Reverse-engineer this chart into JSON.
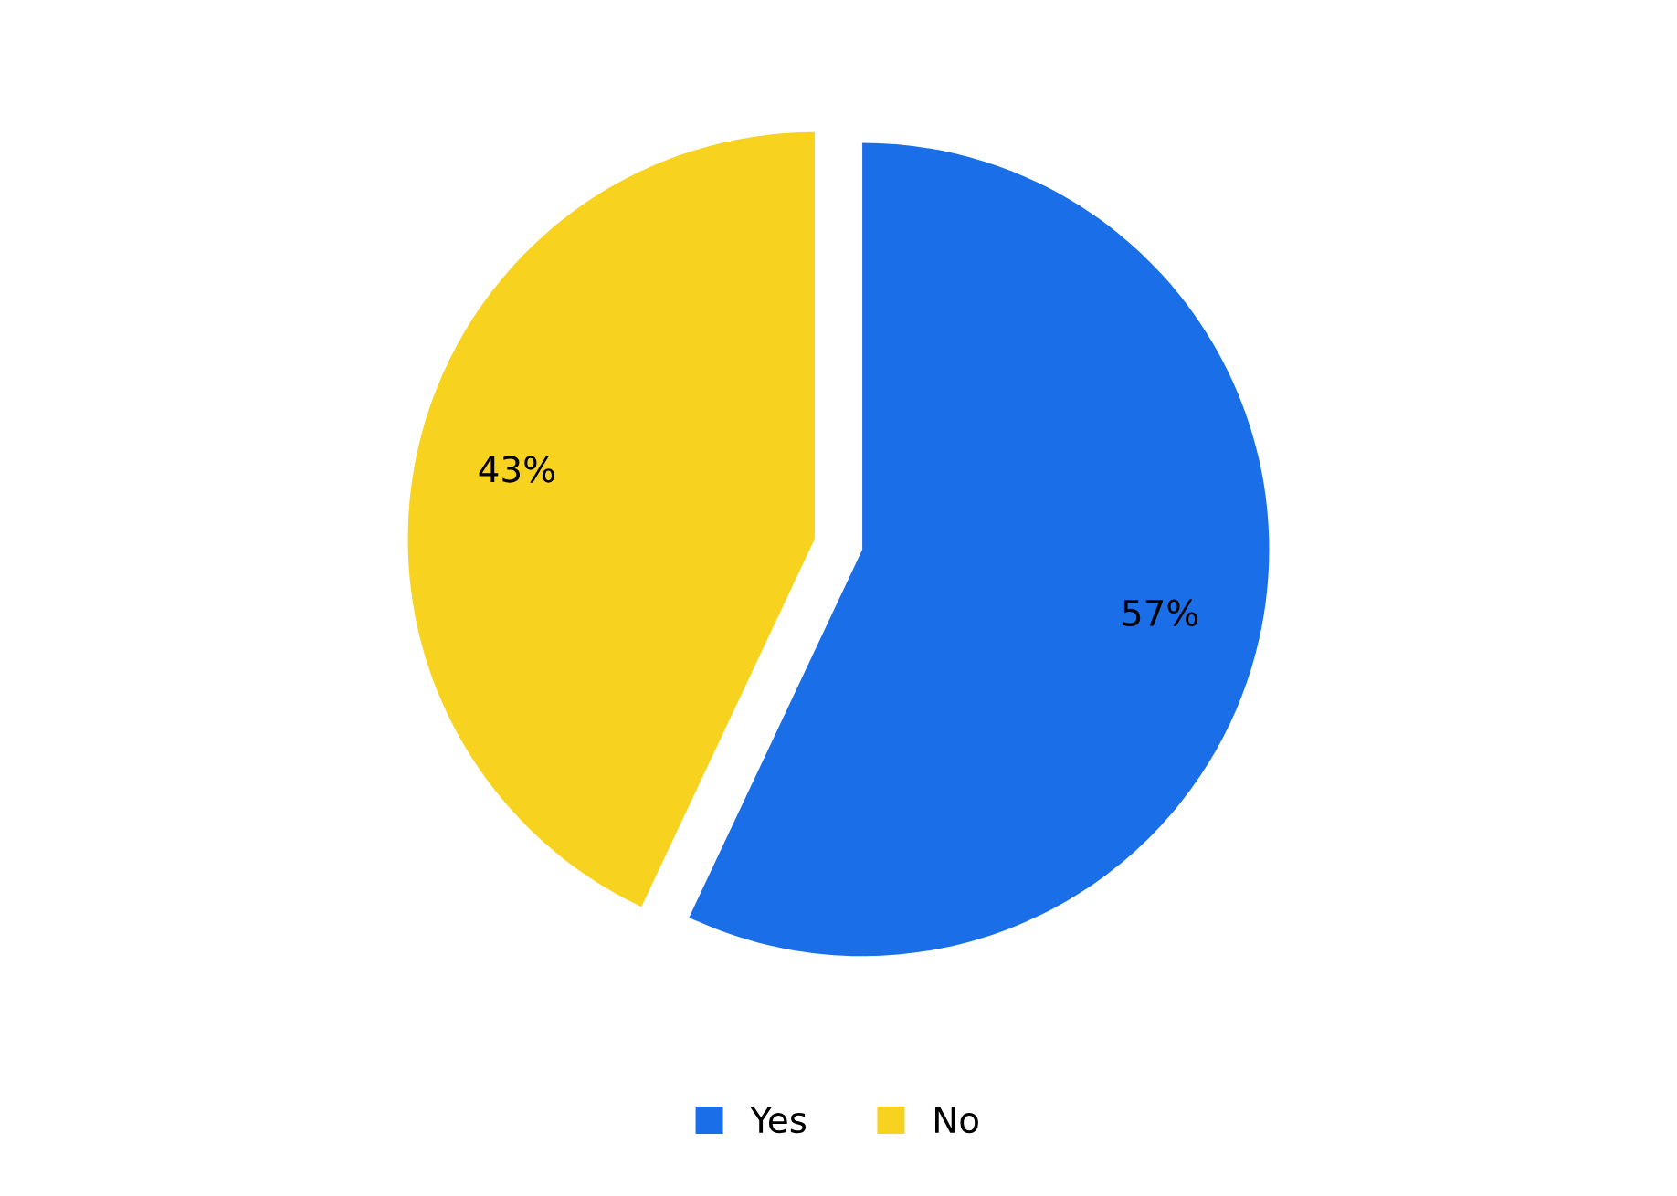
{
  "chart_data": {
    "type": "pie",
    "categories": [
      "Yes",
      "No"
    ],
    "values": [
      57,
      43
    ],
    "colors": [
      "#1a6fe8",
      "#f7d21e"
    ],
    "value_labels": [
      "57%",
      "43%"
    ],
    "legend": "bottom"
  }
}
